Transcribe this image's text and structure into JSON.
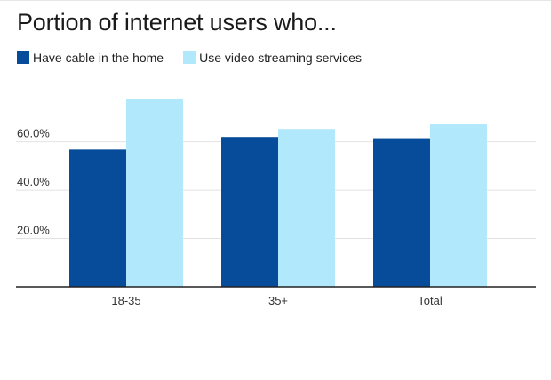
{
  "chart_data": {
    "type": "bar",
    "title": "Portion of internet users who...",
    "categories": [
      "18-35",
      "35+",
      "Total"
    ],
    "series": [
      {
        "name": "Have cable in the home",
        "values": [
          56.8,
          62.0,
          61.5
        ],
        "color": "#064c9a"
      },
      {
        "name": "Use video streaming services",
        "values": [
          77.5,
          65.3,
          67.2
        ],
        "color": "#b2e8fc"
      }
    ],
    "ylim": [
      0,
      77.5
    ],
    "y_ticks": [
      20,
      40,
      60
    ],
    "y_tick_labels": [
      "20.0%",
      "40.0%",
      "60.0%"
    ],
    "xlabel": "",
    "ylabel": "",
    "grid": true,
    "legend_position": "top-left"
  }
}
